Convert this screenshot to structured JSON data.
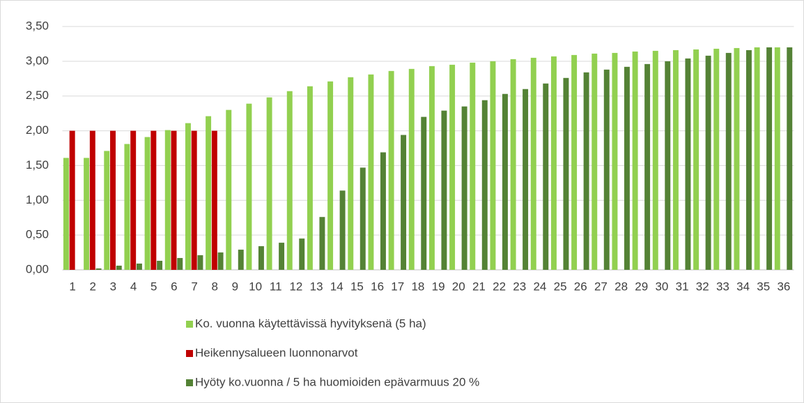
{
  "chart_data": {
    "type": "bar",
    "categories": [
      "1",
      "2",
      "3",
      "4",
      "5",
      "6",
      "7",
      "8",
      "9",
      "10",
      "11",
      "12",
      "13",
      "14",
      "15",
      "16",
      "17",
      "18",
      "19",
      "20",
      "21",
      "22",
      "23",
      "24",
      "25",
      "26",
      "27",
      "28",
      "29",
      "30",
      "31",
      "32",
      "33",
      "34",
      "35",
      "36"
    ],
    "series": [
      {
        "name": "Ko. vuonna käytettävissä hyvityksenä (5 ha)",
        "color": "#92d050",
        "values": [
          1.61,
          1.61,
          1.71,
          1.81,
          1.91,
          2.01,
          2.11,
          2.21,
          2.3,
          2.39,
          2.48,
          2.57,
          2.64,
          2.71,
          2.77,
          2.81,
          2.86,
          2.89,
          2.93,
          2.95,
          2.98,
          3.0,
          3.03,
          3.05,
          3.07,
          3.09,
          3.11,
          3.12,
          3.14,
          3.15,
          3.16,
          3.17,
          3.18,
          3.19,
          3.2,
          3.2
        ]
      },
      {
        "name": "Heikennysalueen luonnonarvot",
        "color": "#c00000",
        "values": [
          2,
          2,
          2,
          2,
          2,
          2,
          2,
          2,
          null,
          null,
          null,
          null,
          null,
          null,
          null,
          null,
          null,
          null,
          null,
          null,
          null,
          null,
          null,
          null,
          null,
          null,
          null,
          null,
          null,
          null,
          null,
          null,
          null,
          null,
          null,
          null
        ]
      },
      {
        "name": "Hyöty ko.vuonna / 5 ha huomioiden epävarmuus 20 %",
        "color": "#548235",
        "values": [
          0,
          0.02,
          0.06,
          0.09,
          0.13,
          0.17,
          0.21,
          0.25,
          0.29,
          0.34,
          0.39,
          0.45,
          0.76,
          1.14,
          1.47,
          1.69,
          1.94,
          2.2,
          2.29,
          2.35,
          2.44,
          2.53,
          2.6,
          2.68,
          2.76,
          2.84,
          2.88,
          2.92,
          2.96,
          3.0,
          3.04,
          3.08,
          3.12,
          3.16,
          3.2,
          3.2
        ]
      }
    ],
    "ylim": [
      0,
      3.5
    ],
    "yticks": [
      {
        "value": 0,
        "label": "0,00"
      },
      {
        "value": 0.5,
        "label": "0,50"
      },
      {
        "value": 1,
        "label": "1,00"
      },
      {
        "value": 1.5,
        "label": "1,50"
      },
      {
        "value": 2,
        "label": "2,00"
      },
      {
        "value": 2.5,
        "label": "2,50"
      },
      {
        "value": 3,
        "label": "3,00"
      },
      {
        "value": 3.5,
        "label": "3,50"
      }
    ],
    "grid": true,
    "legend": "bottom"
  }
}
